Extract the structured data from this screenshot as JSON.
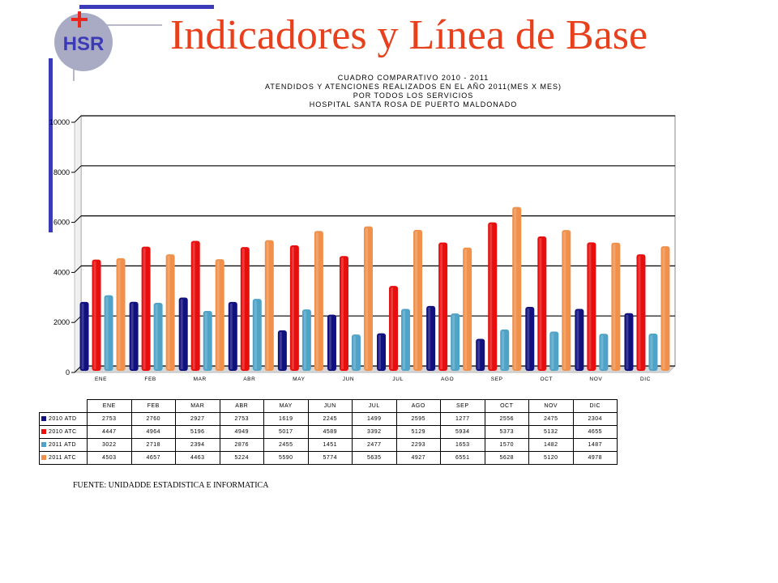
{
  "slide": {
    "title": "Indicadores y Línea de Base",
    "logo_text": "HSR",
    "source": "FUENTE: UNIDADDE ESTADISTICA E INFORMATICA"
  },
  "colors": {
    "title": "#e8401c",
    "accent_blue": "#3b3bb8",
    "logo_circle": "#a9abc4",
    "cross": "#e8281c"
  },
  "chart_data": {
    "type": "bar",
    "title_lines": [
      "CUADRO COMPARATIVO 2010 - 2011",
      "ATENDIDOS Y ATENCIONES REALIZADOS EN EL AÑO 2011(MES X MES)",
      "POR TODOS LOS SERVICIOS",
      "HOSPITAL SANTA ROSA DE PUERTO MALDONADO"
    ],
    "categories": [
      "ENE",
      "FEB",
      "MAR",
      "ABR",
      "MAY",
      "JUN",
      "JUL",
      "AGO",
      "SEP",
      "OCT",
      "NOV",
      "DIC"
    ],
    "ylim": [
      0,
      10000
    ],
    "yticks": [
      "0",
      "2000",
      "4000",
      "6000",
      "8000",
      "10000"
    ],
    "grid": true,
    "legend": "table-below",
    "series": [
      {
        "name": "2010 ATD",
        "color": "#10107e",
        "values": [
          2753,
          2760,
          2927,
          2753,
          1619,
          2245,
          1499,
          2595,
          1277,
          2556,
          2475,
          2304
        ]
      },
      {
        "name": "2010 ATC",
        "color": "#e80e0e",
        "values": [
          4447,
          4964,
          5196,
          4949,
          5017,
          4589,
          3392,
          5129,
          5934,
          5373,
          5132,
          4655
        ]
      },
      {
        "name": "2011 ATD",
        "color": "#4fa3c7",
        "values": [
          3022,
          2718,
          2394,
          2876,
          2455,
          1451,
          2477,
          2293,
          1653,
          1570,
          1482,
          1487
        ]
      },
      {
        "name": "2011 ATC",
        "color": "#f0904a",
        "values": [
          4503,
          4657,
          4463,
          5224,
          5590,
          5774,
          5635,
          4927,
          6551,
          5628,
          5120,
          4978
        ]
      }
    ]
  }
}
